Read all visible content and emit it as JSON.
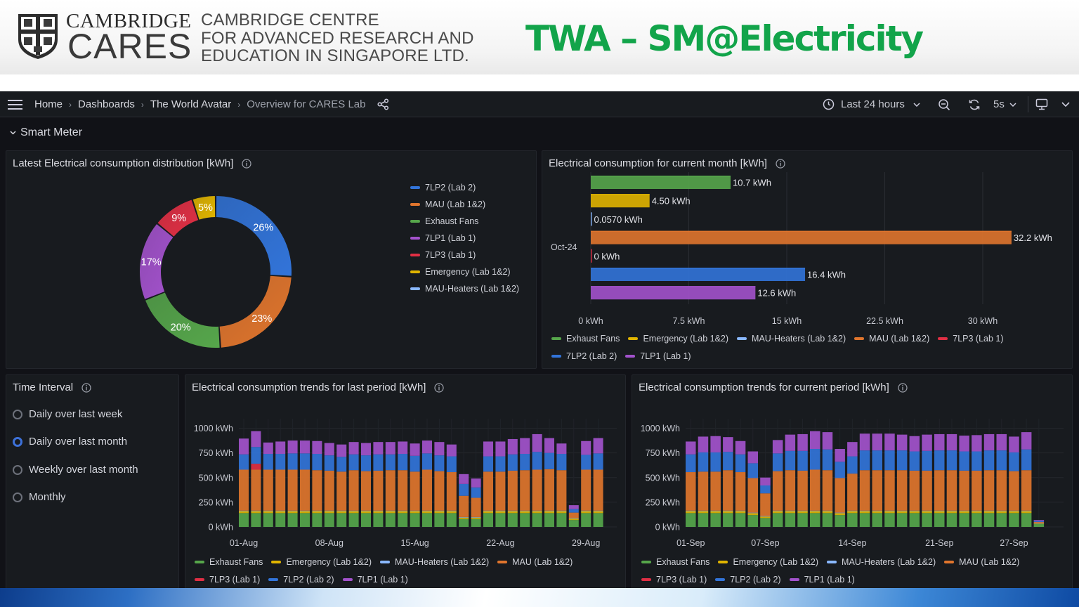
{
  "banner": {
    "cambridge": "CAMBRIDGE",
    "cares": "CARES",
    "centre_lines": [
      "CAMBRIDGE CENTRE",
      "FOR ADVANCED RESEARCH AND",
      "EDUCATION IN SINGAPORE LTD."
    ],
    "title": "TWA – SM@Electricity"
  },
  "topbar": {
    "breadcrumbs": [
      "Home",
      "Dashboards",
      "The World Avatar",
      "Overview for CARES Lab"
    ],
    "time_range": "Last 24 hours",
    "refresh_interval": "5s"
  },
  "row": {
    "title": "Smart Meter"
  },
  "colors": {
    "exhaust": "#56a64b",
    "emergency": "#e0b400",
    "mau_heaters": "#8ab8ff",
    "mau": "#e0752d",
    "lp3": "#e02f44",
    "lp2": "#3274d9",
    "lp1": "#a352cc"
  },
  "panels": {
    "donut": {
      "title": "Latest Electrical consumption distribution [kWh]",
      "legend": [
        "7LP2 (Lab 2)",
        "MAU (Lab 1&2)",
        "Exhaust Fans",
        "7LP1 (Lab 1)",
        "7LP3 (Lab 1)",
        "Emergency (Lab 1&2)",
        "MAU-Heaters (Lab 1&2)"
      ]
    },
    "month_bar": {
      "title": "Electrical consumption for current month [kWh]",
      "legend": [
        "Exhaust Fans",
        "Emergency (Lab 1&2)",
        "MAU-Heaters (Lab 1&2)",
        "MAU (Lab 1&2)",
        "7LP3 (Lab 1)",
        "7LP2 (Lab 2)",
        "7LP1 (Lab 1)"
      ]
    },
    "interval": {
      "title": "Time Interval",
      "options": [
        "Daily over last week",
        "Daily over last month",
        "Weekly over last month",
        "Monthly"
      ],
      "selected": 1
    },
    "last_period": {
      "title": "Electrical consumption trends for last period [kWh]",
      "legend": [
        "Exhaust Fans",
        "Emergency (Lab 1&2)",
        "MAU-Heaters (Lab 1&2)",
        "MAU (Lab 1&2)",
        "7LP3 (Lab 1)",
        "7LP2 (Lab 2)",
        "7LP1 (Lab 1)"
      ]
    },
    "current_period": {
      "title": "Electrical consumption trends for current period [kWh]",
      "legend": [
        "Exhaust Fans",
        "Emergency (Lab 1&2)",
        "MAU-Heaters (Lab 1&2)",
        "MAU (Lab 1&2)",
        "7LP3 (Lab 1)",
        "7LP2 (Lab 2)",
        "7LP1 (Lab 1)"
      ]
    }
  },
  "chart_data": [
    {
      "type": "pie",
      "labels": [
        "7LP2 (Lab 2)",
        "MAU (Lab 1&2)",
        "Exhaust Fans",
        "7LP1 (Lab 1)",
        "7LP3 (Lab 1)",
        "Emergency (Lab 1&2)",
        "MAU-Heaters (Lab 1&2)"
      ],
      "values": [
        26,
        23,
        20,
        17,
        9,
        5,
        0
      ],
      "display_labels": [
        "26%",
        "23%",
        "20%",
        "17%",
        "9%",
        "5%",
        ""
      ],
      "colors": [
        "#3274d9",
        "#e0752d",
        "#56a64b",
        "#a352cc",
        "#e02f44",
        "#e0b400",
        "#8ab8ff"
      ],
      "donut": true,
      "legend_position": "right"
    },
    {
      "type": "bar",
      "orientation": "horizontal",
      "category": "Oct-24",
      "series": [
        {
          "name": "Exhaust Fans",
          "value": 10.7,
          "label": "10.7 kWh"
        },
        {
          "name": "Emergency (Lab 1&2)",
          "value": 4.5,
          "label": "4.50 kWh"
        },
        {
          "name": "MAU-Heaters (Lab 1&2)",
          "value": 0.057,
          "label": "0.0570 kWh"
        },
        {
          "name": "MAU (Lab 1&2)",
          "value": 32.2,
          "label": "32.2 kWh"
        },
        {
          "name": "7LP3 (Lab 1)",
          "value": 0,
          "label": "0 kWh"
        },
        {
          "name": "7LP2 (Lab 2)",
          "value": 16.4,
          "label": "16.4 kWh"
        },
        {
          "name": "7LP1 (Lab 1)",
          "value": 12.6,
          "label": "12.6 kWh"
        }
      ],
      "xlim": [
        0,
        33
      ],
      "xticks": [
        0,
        7.5,
        15,
        22.5,
        30
      ],
      "xtick_labels": [
        "0 kWh",
        "7.5 kWh",
        "15 kWh",
        "22.5 kWh",
        "30 kWh"
      ],
      "legend_position": "bottom"
    },
    {
      "type": "bar",
      "stacked": true,
      "series_names": [
        "Exhaust Fans",
        "Emergency (Lab 1&2)",
        "MAU-Heaters (Lab 1&2)",
        "MAU (Lab 1&2)",
        "7LP3 (Lab 1)",
        "7LP2 (Lab 2)",
        "7LP1 (Lab 1)"
      ],
      "x_start_day": 1,
      "x_tick_labels": [
        "01-Aug",
        "08-Aug",
        "15-Aug",
        "22-Aug",
        "29-Aug"
      ],
      "x_tick_days": [
        1,
        8,
        15,
        22,
        29
      ],
      "ylim": [
        0,
        1050
      ],
      "yticks": [
        0,
        250,
        500,
        750,
        1000
      ],
      "ytick_labels": [
        "0 kWh",
        "250 kWh",
        "500 kWh",
        "750 kWh",
        "1000 kWh"
      ],
      "bars": [
        [
          140,
          20,
          5,
          415,
          0,
          155,
          160
        ],
        [
          140,
          20,
          5,
          415,
          60,
          170,
          160
        ],
        [
          140,
          20,
          5,
          415,
          0,
          160,
          115
        ],
        [
          140,
          20,
          5,
          415,
          0,
          160,
          125
        ],
        [
          140,
          20,
          5,
          415,
          0,
          165,
          130
        ],
        [
          140,
          20,
          5,
          415,
          0,
          165,
          130
        ],
        [
          140,
          20,
          5,
          410,
          0,
          165,
          130
        ],
        [
          140,
          20,
          5,
          405,
          0,
          155,
          125
        ],
        [
          140,
          20,
          5,
          395,
          0,
          150,
          125
        ],
        [
          140,
          20,
          5,
          410,
          0,
          160,
          125
        ],
        [
          140,
          20,
          5,
          400,
          0,
          160,
          125
        ],
        [
          140,
          20,
          5,
          405,
          0,
          165,
          125
        ],
        [
          140,
          20,
          5,
          410,
          0,
          160,
          125
        ],
        [
          140,
          20,
          5,
          410,
          0,
          165,
          125
        ],
        [
          140,
          20,
          5,
          395,
          0,
          160,
          125
        ],
        [
          140,
          20,
          5,
          415,
          0,
          165,
          130
        ],
        [
          140,
          20,
          5,
          400,
          0,
          160,
          135
        ],
        [
          140,
          20,
          5,
          390,
          0,
          160,
          120
        ],
        [
          80,
          15,
          5,
          215,
          0,
          120,
          100
        ],
        [
          80,
          15,
          5,
          195,
          0,
          105,
          90
        ],
        [
          140,
          20,
          5,
          395,
          0,
          155,
          150
        ],
        [
          140,
          20,
          5,
          395,
          0,
          155,
          150
        ],
        [
          140,
          20,
          5,
          405,
          0,
          165,
          155
        ],
        [
          140,
          20,
          5,
          410,
          0,
          165,
          160
        ],
        [
          140,
          20,
          5,
          415,
          0,
          180,
          180
        ],
        [
          140,
          20,
          5,
          420,
          0,
          165,
          150
        ],
        [
          140,
          20,
          5,
          410,
          0,
          165,
          105
        ],
        [
          70,
          15,
          5,
          55,
          0,
          35,
          40
        ],
        [
          140,
          20,
          5,
          415,
          0,
          150,
          140
        ],
        [
          140,
          20,
          5,
          415,
          0,
          165,
          155
        ]
      ],
      "legend_position": "bottom"
    },
    {
      "type": "bar",
      "stacked": true,
      "series_names": [
        "Exhaust Fans",
        "Emergency (Lab 1&2)",
        "MAU-Heaters (Lab 1&2)",
        "MAU (Lab 1&2)",
        "7LP3 (Lab 1)",
        "7LP2 (Lab 2)",
        "7LP1 (Lab 1)"
      ],
      "x_start_day": 1,
      "x_tick_labels": [
        "01-Sep",
        "07-Sep",
        "14-Sep",
        "21-Sep",
        "27-Sep"
      ],
      "x_tick_days": [
        1,
        7,
        14,
        21,
        27
      ],
      "ylim": [
        0,
        1050
      ],
      "yticks": [
        0,
        250,
        500,
        750,
        1000
      ],
      "ytick_labels": [
        "0 kWh",
        "250 kWh",
        "500 kWh",
        "750 kWh",
        "1000 kWh"
      ],
      "bars": [
        [
          140,
          20,
          5,
          390,
          0,
          180,
          130
        ],
        [
          140,
          20,
          5,
          395,
          0,
          195,
          160
        ],
        [
          140,
          20,
          5,
          395,
          0,
          195,
          165
        ],
        [
          140,
          20,
          5,
          410,
          0,
          185,
          150
        ],
        [
          140,
          20,
          5,
          390,
          0,
          180,
          135
        ],
        [
          120,
          20,
          5,
          350,
          0,
          150,
          120
        ],
        [
          90,
          15,
          5,
          230,
          0,
          80,
          80
        ],
        [
          140,
          20,
          5,
          400,
          0,
          180,
          135
        ],
        [
          140,
          20,
          5,
          410,
          0,
          195,
          165
        ],
        [
          140,
          20,
          5,
          405,
          0,
          200,
          170
        ],
        [
          140,
          20,
          5,
          415,
          0,
          210,
          180
        ],
        [
          140,
          20,
          5,
          410,
          0,
          210,
          175
        ],
        [
          120,
          20,
          5,
          350,
          0,
          165,
          130
        ],
        [
          140,
          20,
          5,
          375,
          0,
          175,
          145
        ],
        [
          140,
          20,
          5,
          410,
          0,
          200,
          170
        ],
        [
          140,
          20,
          5,
          410,
          0,
          200,
          170
        ],
        [
          140,
          20,
          5,
          410,
          0,
          200,
          170
        ],
        [
          140,
          20,
          5,
          410,
          0,
          200,
          160
        ],
        [
          140,
          20,
          5,
          405,
          0,
          195,
          155
        ],
        [
          140,
          20,
          5,
          405,
          0,
          200,
          165
        ],
        [
          140,
          20,
          5,
          410,
          0,
          200,
          165
        ],
        [
          140,
          20,
          5,
          410,
          0,
          200,
          165
        ],
        [
          140,
          20,
          5,
          405,
          0,
          195,
          160
        ],
        [
          140,
          20,
          5,
          405,
          0,
          195,
          165
        ],
        [
          140,
          20,
          5,
          410,
          0,
          200,
          165
        ],
        [
          140,
          20,
          5,
          410,
          0,
          200,
          165
        ],
        [
          140,
          20,
          5,
          400,
          0,
          190,
          160
        ],
        [
          140,
          20,
          5,
          410,
          0,
          210,
          175
        ],
        [
          30,
          5,
          5,
          10,
          0,
          10,
          10
        ]
      ],
      "legend_position": "bottom"
    }
  ]
}
